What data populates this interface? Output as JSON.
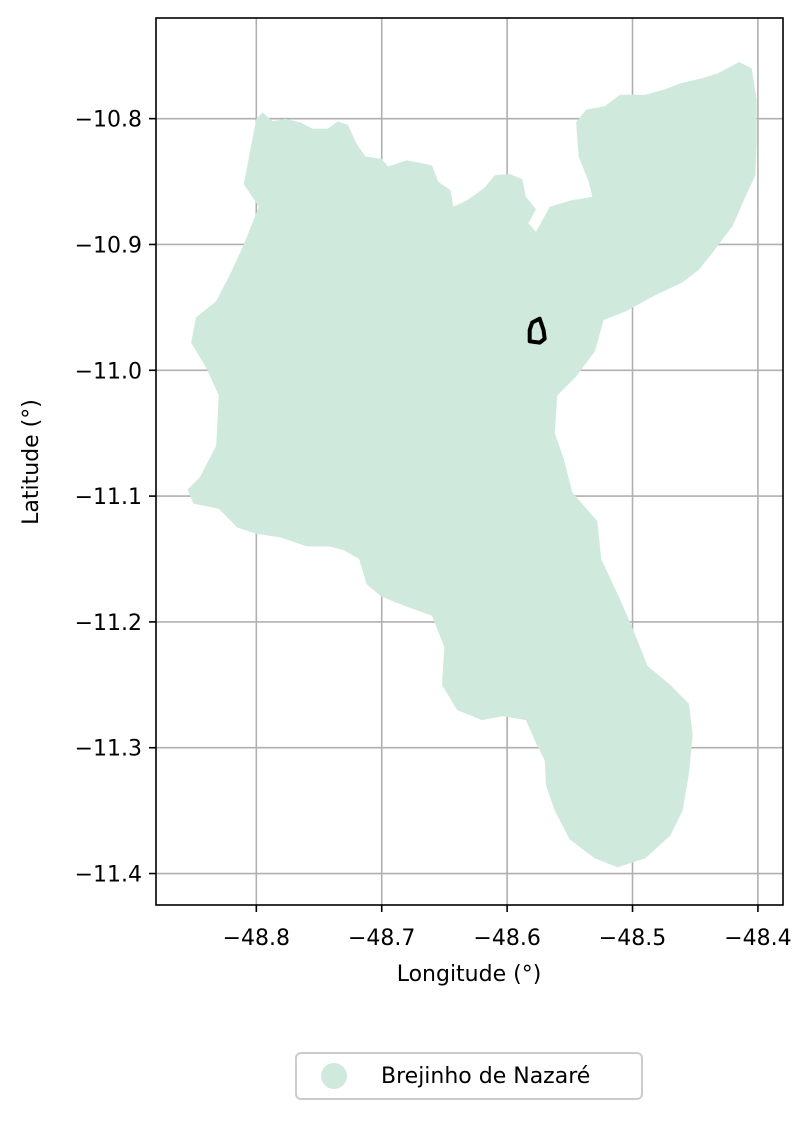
{
  "chart_data": {
    "type": "map",
    "xlabel": "Longitude (°)",
    "ylabel": "Latitude (°)",
    "xlim": [
      -48.88,
      -48.38
    ],
    "ylim": [
      -11.425,
      -10.72
    ],
    "x_ticks": [
      -48.8,
      -48.7,
      -48.6,
      -48.5,
      -48.4
    ],
    "y_ticks": [
      -10.8,
      -10.9,
      -11.0,
      -11.1,
      -11.2,
      -11.3,
      -11.4
    ],
    "x_tick_labels": [
      "−48.8",
      "−48.7",
      "−48.6",
      "−48.5",
      "−48.4"
    ],
    "y_tick_labels": [
      "−10.8",
      "−10.9",
      "−11.0",
      "−11.1",
      "−11.2",
      "−11.3",
      "−11.4"
    ],
    "grid": true,
    "legend_position": "bottom-center",
    "regions": [
      {
        "name": "Brejinho de Nazaré",
        "fill": "#cfeadd",
        "outline": [
          [
            -48.81,
            -10.852
          ],
          [
            -48.8,
            -10.8
          ],
          [
            -48.795,
            -10.795
          ],
          [
            -48.787,
            -10.802
          ],
          [
            -48.777,
            -10.8
          ],
          [
            -48.765,
            -10.803
          ],
          [
            -48.755,
            -10.808
          ],
          [
            -48.743,
            -10.808
          ],
          [
            -48.735,
            -10.802
          ],
          [
            -48.727,
            -10.805
          ],
          [
            -48.72,
            -10.82
          ],
          [
            -48.713,
            -10.83
          ],
          [
            -48.7,
            -10.832
          ],
          [
            -48.695,
            -10.838
          ],
          [
            -48.68,
            -10.833
          ],
          [
            -48.66,
            -10.837
          ],
          [
            -48.655,
            -10.85
          ],
          [
            -48.645,
            -10.857
          ],
          [
            -48.643,
            -10.87
          ],
          [
            -48.632,
            -10.865
          ],
          [
            -48.618,
            -10.855
          ],
          [
            -48.61,
            -10.845
          ],
          [
            -48.598,
            -10.844
          ],
          [
            -48.588,
            -10.848
          ],
          [
            -48.585,
            -10.862
          ],
          [
            -48.577,
            -10.872
          ],
          [
            -48.583,
            -10.883
          ],
          [
            -48.577,
            -10.89
          ],
          [
            -48.566,
            -10.87
          ],
          [
            -48.549,
            -10.865
          ],
          [
            -48.532,
            -10.862
          ],
          [
            -48.535,
            -10.85
          ],
          [
            -48.543,
            -10.83
          ],
          [
            -48.545,
            -10.803
          ],
          [
            -48.537,
            -10.793
          ],
          [
            -48.522,
            -10.79
          ],
          [
            -48.51,
            -10.781
          ],
          [
            -48.49,
            -10.781
          ],
          [
            -48.475,
            -10.777
          ],
          [
            -48.462,
            -10.772
          ],
          [
            -48.445,
            -10.768
          ],
          [
            -48.432,
            -10.764
          ],
          [
            -48.415,
            -10.755
          ],
          [
            -48.405,
            -10.76
          ],
          [
            -48.401,
            -10.785
          ],
          [
            -48.401,
            -10.82
          ],
          [
            -48.402,
            -10.845
          ],
          [
            -48.41,
            -10.862
          ],
          [
            -48.42,
            -10.885
          ],
          [
            -48.435,
            -10.905
          ],
          [
            -48.447,
            -10.92
          ],
          [
            -48.46,
            -10.93
          ],
          [
            -48.485,
            -10.942
          ],
          [
            -48.505,
            -10.953
          ],
          [
            -48.523,
            -10.96
          ],
          [
            -48.53,
            -10.985
          ],
          [
            -48.545,
            -11.005
          ],
          [
            -48.56,
            -11.02
          ],
          [
            -48.562,
            -11.05
          ],
          [
            -48.555,
            -11.07
          ],
          [
            -48.548,
            -11.097
          ],
          [
            -48.528,
            -11.12
          ],
          [
            -48.525,
            -11.15
          ],
          [
            -48.51,
            -11.182
          ],
          [
            -48.5,
            -11.205
          ],
          [
            -48.488,
            -11.235
          ],
          [
            -48.47,
            -11.25
          ],
          [
            -48.455,
            -11.265
          ],
          [
            -48.452,
            -11.29
          ],
          [
            -48.455,
            -11.32
          ],
          [
            -48.46,
            -11.35
          ],
          [
            -48.47,
            -11.37
          ],
          [
            -48.49,
            -11.388
          ],
          [
            -48.512,
            -11.395
          ],
          [
            -48.53,
            -11.388
          ],
          [
            -48.55,
            -11.373
          ],
          [
            -48.562,
            -11.35
          ],
          [
            -48.569,
            -11.33
          ],
          [
            -48.57,
            -11.31
          ],
          [
            -48.578,
            -11.294
          ],
          [
            -48.585,
            -11.278
          ],
          [
            -48.604,
            -11.275
          ],
          [
            -48.62,
            -11.278
          ],
          [
            -48.64,
            -11.27
          ],
          [
            -48.652,
            -11.25
          ],
          [
            -48.65,
            -11.22
          ],
          [
            -48.66,
            -11.195
          ],
          [
            -48.68,
            -11.188
          ],
          [
            -48.7,
            -11.18
          ],
          [
            -48.712,
            -11.17
          ],
          [
            -48.718,
            -11.15
          ],
          [
            -48.73,
            -11.143
          ],
          [
            -48.742,
            -11.14
          ],
          [
            -48.76,
            -11.14
          ],
          [
            -48.78,
            -11.133
          ],
          [
            -48.8,
            -11.13
          ],
          [
            -48.815,
            -11.125
          ],
          [
            -48.83,
            -11.11
          ],
          [
            -48.85,
            -11.106
          ],
          [
            -48.855,
            -11.095
          ],
          [
            -48.845,
            -11.085
          ],
          [
            -48.832,
            -11.06
          ],
          [
            -48.83,
            -11.02
          ],
          [
            -48.84,
            -10.998
          ],
          [
            -48.852,
            -10.978
          ],
          [
            -48.848,
            -10.958
          ],
          [
            -48.832,
            -10.945
          ],
          [
            -48.82,
            -10.922
          ],
          [
            -48.81,
            -10.9
          ],
          [
            -48.798,
            -10.87
          ]
        ]
      },
      {
        "name": "",
        "fill": "none",
        "stroke": "#000000",
        "outline": [
          [
            -48.58,
            -10.962
          ],
          [
            -48.574,
            -10.959
          ],
          [
            -48.571,
            -10.968
          ],
          [
            -48.57,
            -10.975
          ],
          [
            -48.574,
            -10.978
          ],
          [
            -48.582,
            -10.977
          ],
          [
            -48.582,
            -10.968
          ]
        ]
      }
    ],
    "legend": [
      {
        "label": "Brejinho de Nazaré",
        "color": "#cfeadd"
      }
    ]
  }
}
